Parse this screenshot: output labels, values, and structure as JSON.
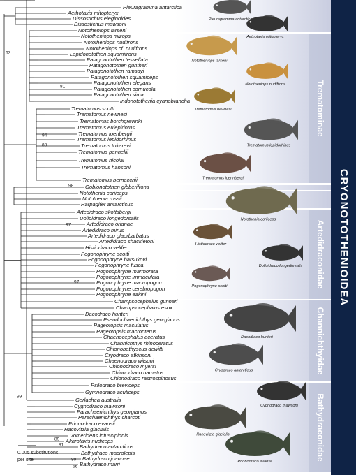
{
  "title": "CRYONOTOTHENIOIDEA",
  "clades": [
    "Trematominae",
    "Artedidraconidae",
    "Channichthyidae",
    "Bathydraconidae"
  ],
  "taxa": [
    "Pleuragramma antarctica",
    "Aethotaxis mitopteryx",
    "Dissostichus eleginoides",
    "Dissostichus mawsoni",
    "Nototheniops larseni",
    "Nototheniops mizops",
    "Nototheniops nudifrons",
    "Nototheniops cf. nudifrons",
    "Lepidonotothen squamifrons",
    "Patagonotothen tessellata",
    "Patagonotothen guntheri",
    "Patagonotothen ramsayi",
    "Patagonotothen squamiceps",
    "Patagonotothen elegans",
    "Patagonotothen cornucola",
    "Patagonotothen sima",
    "Indonotothenia cyanobrancha",
    "Trematomus scotti",
    "Trematomus newnesi",
    "Trematomus borchgrevinki",
    "Trematomus eulepidotus",
    "Trematomus loenbergii",
    "Trematomus lepidorhinus",
    "Trematomus tokarevi",
    "Trematomus pennellii",
    "Trematomus nicolai",
    "Trematomus hansoni",
    "Trematomus bernacchii",
    "Gobionotothen gibberifrons",
    "Notothenia coriiceps",
    "Notothenia rossii",
    "Harpagifer antarcticus",
    "Artedidraco skottsbergi",
    "Dolloidraco longedorsalis",
    "Artedidraco orianae",
    "Artedidraco mirus",
    "Artedidraco glaorbarbatus",
    "Artedidraco shackletoni",
    "Histiodraco velifer",
    "Pogonophryne scotti",
    "Pogonophryne barsukovi",
    "Pogonophryne fusca",
    "Pogonophryne marmorata",
    "Pogonophryne immaculata",
    "Pogonophryne macropogon",
    "Pogonophryne cerebropogon",
    "Pogonophryne eakini",
    "Champsocephalus gunnari",
    "Champsocephalus esox",
    "Dacodraco hunteri",
    "Pseudochaenichthys georgianus",
    "Pageotopsis maculatus",
    "Pageotopsis macropterus",
    "Chaenocephalus aceratus",
    "Channichthys rhinoceratus",
    "Chionobathyscus dewitti",
    "Cryodraco atkinsoni",
    "Chaenodraco wilsoni",
    "Chionodraco myersi",
    "Chionodraco hamatus",
    "Chionodraco rastrospinosus",
    "Psilodraco breviceps",
    "Gymnodraco acuticeps",
    "Gerlachea australis",
    "Cygnodraco mawsoni",
    "Parachaenichthys georgianus",
    "Parachaenichthys charcoti",
    "Prionodraco evansii",
    "Racovitzia glacialis",
    "Vomeridens infuscipinnis",
    "Akarotaxis nudiceps",
    "Bathydraco antarcticus",
    "Bathydraco macrolepis",
    "Bathydraco joannae",
    "Bathydraco marri"
  ],
  "support": [
    63,
    81,
    94,
    88,
    98,
    97,
    97,
    99,
    89,
    81,
    99,
    66
  ],
  "fish_captions": [
    "Pleuragramma antarctica",
    "Aethotaxis mitopteryx",
    "Nototheniops larseni",
    "Nototheniops nudifrons",
    "Trematomus newnesi",
    "Trematomus lepidorhinus",
    "Trematomus loennbergii",
    "Notothenia coriiceps",
    "Histiodraco velifer",
    "Dolloidraco longedorsalis",
    "Pogonophryne scotti",
    "Dacodraco hunteri",
    "Cryodraco antarcticus",
    "Cygnodraco mawsoni",
    "Racovitzia glacialis",
    "Prionodraco evansii"
  ],
  "scale_bar": [
    "0.005 substitutions",
    "per site"
  ]
}
